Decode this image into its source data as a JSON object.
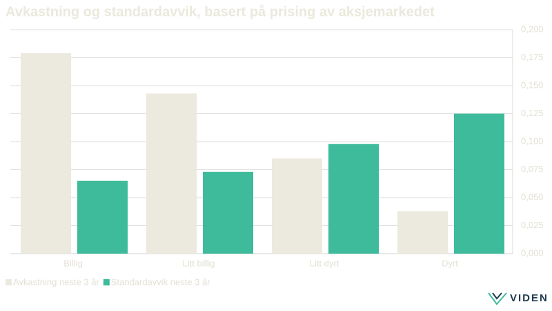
{
  "chart_data": {
    "type": "bar",
    "title": "Avkastning og standardavvik, basert på prising av aksjemarkedet",
    "categories": [
      "Billig",
      "Litt billig",
      "Litt dyrt",
      "Dyrt"
    ],
    "series": [
      {
        "name": "Avkastning neste 3 år",
        "color": "#ece9df",
        "values": [
          0.179,
          0.143,
          0.085,
          0.038
        ]
      },
      {
        "name": "Standardavvik neste 3 år",
        "color": "#3dbb9b",
        "values": [
          0.065,
          0.073,
          0.098,
          0.125
        ]
      }
    ],
    "ylim": [
      0,
      0.2
    ],
    "yticks": [
      {
        "value": 0,
        "label": "0,000"
      },
      {
        "value": 0.025,
        "label": "0,025"
      },
      {
        "value": 0.05,
        "label": "0,050"
      },
      {
        "value": 0.075,
        "label": "0,075"
      },
      {
        "value": 0.1,
        "label": "0,100"
      },
      {
        "value": 0.125,
        "label": "0,125"
      },
      {
        "value": 0.15,
        "label": "0,150"
      },
      {
        "value": 0.175,
        "label": "0,175"
      },
      {
        "value": 0.2,
        "label": "0,200"
      }
    ],
    "grid": true,
    "legend": "bottom-left"
  },
  "logo": "VIDEN"
}
